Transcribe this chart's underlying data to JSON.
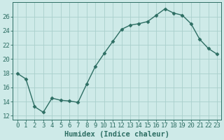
{
  "x": [
    0,
    1,
    2,
    3,
    4,
    5,
    6,
    7,
    8,
    9,
    10,
    11,
    12,
    13,
    14,
    15,
    16,
    17,
    18,
    19,
    20,
    21,
    22,
    23
  ],
  "y": [
    18,
    17.2,
    13.3,
    12.5,
    14.5,
    14.2,
    14.1,
    13.9,
    16.5,
    19.0,
    20.8,
    22.5,
    24.2,
    24.8,
    25.0,
    25.3,
    26.2,
    27.1,
    26.5,
    26.2,
    25.0,
    22.8,
    21.5,
    20.7
  ],
  "line_color": "#2d6e63",
  "marker": "D",
  "marker_size": 2.5,
  "linewidth": 1.0,
  "bg_color": "#ceeae8",
  "grid_color": "#aacfcc",
  "xlabel": "Humidex (Indice chaleur)",
  "xlim": [
    -0.5,
    23.5
  ],
  "ylim": [
    11.5,
    28.0
  ],
  "yticks": [
    12,
    14,
    16,
    18,
    20,
    22,
    24,
    26
  ],
  "xtick_labels": [
    "0",
    "1",
    "2",
    "3",
    "4",
    "5",
    "6",
    "7",
    "8",
    "9",
    "10",
    "11",
    "12",
    "13",
    "14",
    "15",
    "16",
    "17",
    "18",
    "19",
    "20",
    "21",
    "22",
    "23"
  ],
  "xlabel_fontsize": 7.5,
  "tick_fontsize": 6.5
}
